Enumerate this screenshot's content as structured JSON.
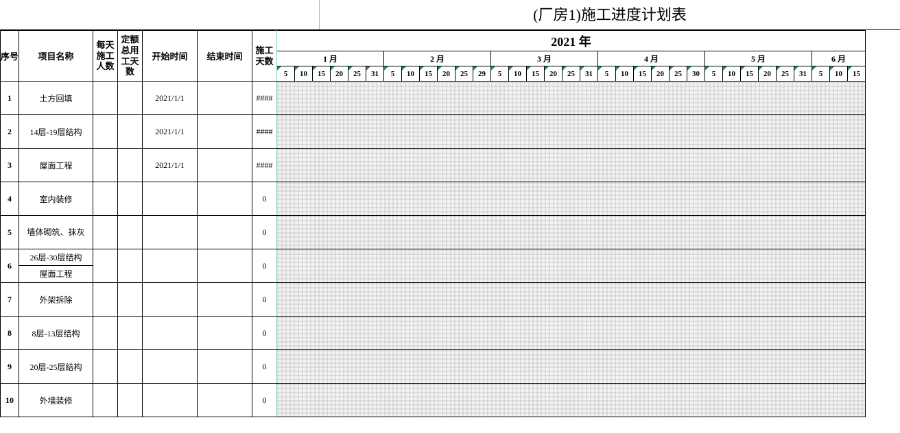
{
  "title": "(厂房1)施工进度计划表",
  "year_label": "2021 年",
  "columns": {
    "seq": "序号",
    "name": "项目名称",
    "daily_workers": "每天施工人数",
    "quota_days": "定额总用工天数",
    "start": "开始时间",
    "end": "结束时间",
    "duration": "施工天数"
  },
  "months": [
    {
      "label": "1 月",
      "days": [
        "5",
        "10",
        "15",
        "20",
        "25",
        "31"
      ]
    },
    {
      "label": "2 月",
      "days": [
        "5",
        "10",
        "15",
        "20",
        "25",
        "29"
      ]
    },
    {
      "label": "3 月",
      "days": [
        "5",
        "10",
        "15",
        "20",
        "25",
        "31"
      ]
    },
    {
      "label": "4 月",
      "days": [
        "5",
        "10",
        "15",
        "20",
        "25",
        "30"
      ]
    },
    {
      "label": "5 月",
      "days": [
        "5",
        "10",
        "15",
        "20",
        "25",
        "31"
      ]
    },
    {
      "label": "6 月",
      "days": [
        "5",
        "10",
        "15"
      ]
    }
  ],
  "col_widths": {
    "seq": 26,
    "name": 108,
    "daily_workers": 36,
    "quota_days": 36,
    "start": 80,
    "end": 80,
    "duration": 36,
    "day": 26
  },
  "rows": [
    {
      "seq": "1",
      "name": "土方回填",
      "start": "2021/1/1",
      "end": "",
      "duration": "####"
    },
    {
      "seq": "2",
      "name": "14层-19层结构",
      "start": "2021/1/1",
      "end": "",
      "duration": "####"
    },
    {
      "seq": "3",
      "name": "屋面工程",
      "start": "2021/1/1",
      "end": "",
      "duration": "####"
    },
    {
      "seq": "4",
      "name": "室内装修",
      "start": "",
      "end": "",
      "duration": "0"
    },
    {
      "seq": "5",
      "name": "墙体砌筑、抹灰",
      "start": "",
      "end": "",
      "duration": "0",
      "wrap": true
    },
    {
      "seq": "6",
      "name_top": "26层-30层结构",
      "name_bot": "屋面工程",
      "start": "",
      "end": "",
      "duration": "0",
      "split": true
    },
    {
      "seq": "7",
      "name": "外架拆除",
      "start": "",
      "end": "",
      "duration": "0"
    },
    {
      "seq": "8",
      "name": "8层-13层结构",
      "start": "",
      "end": "",
      "duration": "0"
    },
    {
      "seq": "9",
      "name": "20层-25层结构",
      "start": "",
      "end": "",
      "duration": "0"
    },
    {
      "seq": "10",
      "name": "外墙装修",
      "start": "",
      "end": "",
      "duration": "0"
    }
  ],
  "colors": {
    "grid": "#c8c8c8",
    "gantt_bg": "#f3f3f3",
    "divider": "#7ed0c0",
    "tick": "#2e8b57",
    "border": "#000000",
    "bg": "#ffffff"
  }
}
